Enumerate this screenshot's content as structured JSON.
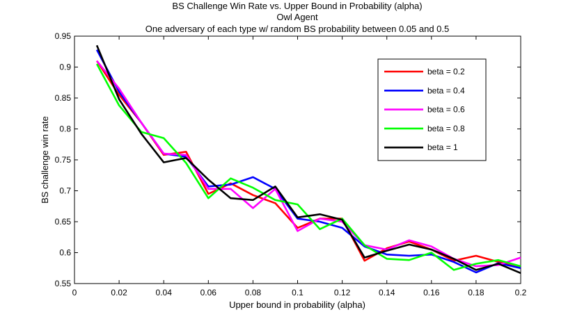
{
  "chart_data": {
    "type": "line",
    "title": "BS Challenge Win Rate vs. Upper Bound in Probability (alpha)",
    "subtitle_lines": [
      "Owl Agent",
      "One adversary of each type w/ random BS probability between 0.05 and 0.5"
    ],
    "xlabel": "Upper bound in probability (alpha)",
    "ylabel": "BS challenge win rate",
    "xlim": [
      0,
      0.2
    ],
    "ylim": [
      0.55,
      0.95
    ],
    "x_ticks": [
      0,
      0.02,
      0.04,
      0.06,
      0.08,
      0.1,
      0.12,
      0.14,
      0.16,
      0.18,
      0.2
    ],
    "x_tick_labels": [
      "0",
      "0.02",
      "0.04",
      "0.06",
      "0.08",
      "0.1",
      "0.12",
      "0.14",
      "0.16",
      "0.18",
      "0.2"
    ],
    "y_ticks": [
      0.55,
      0.6,
      0.65,
      0.7,
      0.75,
      0.8,
      0.85,
      0.9,
      0.95
    ],
    "y_tick_labels": [
      "0.55",
      "0.6",
      "0.65",
      "0.7",
      "0.75",
      "0.8",
      "0.85",
      "0.9",
      "0.95"
    ],
    "grid": false,
    "legend_position": "top-right",
    "x": [
      0.01,
      0.02,
      0.03,
      0.04,
      0.05,
      0.06,
      0.07,
      0.08,
      0.09,
      0.1,
      0.11,
      0.12,
      0.13,
      0.14,
      0.15,
      0.16,
      0.17,
      0.18,
      0.19,
      0.2
    ],
    "series": [
      {
        "name": "beta = 0.2",
        "color": "#ff0000",
        "values": [
          0.91,
          0.855,
          0.81,
          0.758,
          0.763,
          0.695,
          0.712,
          0.693,
          0.68,
          0.64,
          0.655,
          0.655,
          0.587,
          0.607,
          0.618,
          0.605,
          0.587,
          0.595,
          0.585,
          0.575
        ]
      },
      {
        "name": "beta = 0.4",
        "color": "#0000ff",
        "values": [
          0.928,
          0.86,
          0.81,
          0.76,
          0.755,
          0.707,
          0.71,
          0.722,
          0.703,
          0.655,
          0.65,
          0.64,
          0.61,
          0.597,
          0.595,
          0.597,
          0.585,
          0.568,
          0.583,
          0.575
        ]
      },
      {
        "name": "beta = 0.6",
        "color": "#ff00ff",
        "values": [
          0.91,
          0.865,
          0.81,
          0.76,
          0.758,
          0.703,
          0.703,
          0.672,
          0.703,
          0.635,
          0.655,
          0.65,
          0.612,
          0.605,
          0.62,
          0.61,
          0.59,
          0.578,
          0.58,
          0.592
        ]
      },
      {
        "name": "beta = 0.8",
        "color": "#00ff00",
        "values": [
          0.905,
          0.838,
          0.795,
          0.785,
          0.745,
          0.688,
          0.72,
          0.705,
          0.685,
          0.678,
          0.638,
          0.655,
          0.612,
          0.59,
          0.588,
          0.6,
          0.572,
          0.582,
          0.588,
          0.578
        ]
      },
      {
        "name": "beta = 1",
        "color": "#000000",
        "values": [
          0.935,
          0.848,
          0.792,
          0.746,
          0.753,
          0.718,
          0.688,
          0.685,
          0.707,
          0.657,
          0.662,
          0.653,
          0.592,
          0.603,
          0.613,
          0.605,
          0.59,
          0.572,
          0.582,
          0.567
        ]
      }
    ]
  }
}
